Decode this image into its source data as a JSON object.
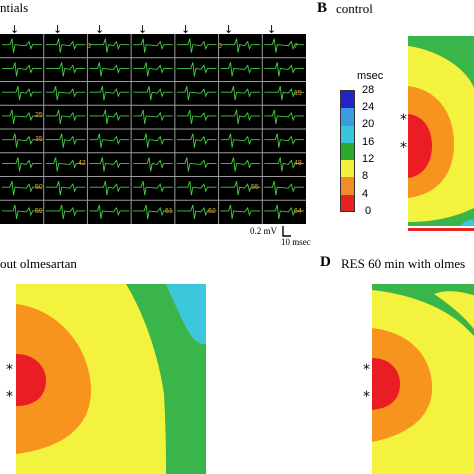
{
  "panel_a": {
    "title": "ntials",
    "electrode_labels": [
      "3",
      "6",
      "7",
      "15",
      "25",
      "35",
      "42",
      "48",
      "50",
      "55",
      "59",
      "61",
      "62",
      "64"
    ],
    "voltage_scale": "0.2 mV",
    "time_scale": "10 msec"
  },
  "panel_b": {
    "letter": "B",
    "title": "control",
    "legend": {
      "unit": "msec",
      "ticks": [
        "28",
        "24",
        "20",
        "16",
        "12",
        "8",
        "4",
        "0"
      ],
      "colors": [
        "#2323c8",
        "#3a9be0",
        "#3bc5dc",
        "#2aa82a",
        "#f2f23a",
        "#f28c28",
        "#e8231f"
      ]
    }
  },
  "panel_c": {
    "title": "out olmesartan"
  },
  "panel_d": {
    "letter": "D",
    "title": "RES 60 min with olmes"
  },
  "colors": {
    "red": "#ea1c24",
    "orange": "#f7941d",
    "yellow": "#f3f33f",
    "green": "#39b54a",
    "cyan": "#3cc7dc",
    "blue_light": "#3f8ee0",
    "blue_dark": "#2a2ad2",
    "red_line": "#e8231f",
    "label_orange": "#e8a23a",
    "trace_green": "#3fd13f"
  }
}
